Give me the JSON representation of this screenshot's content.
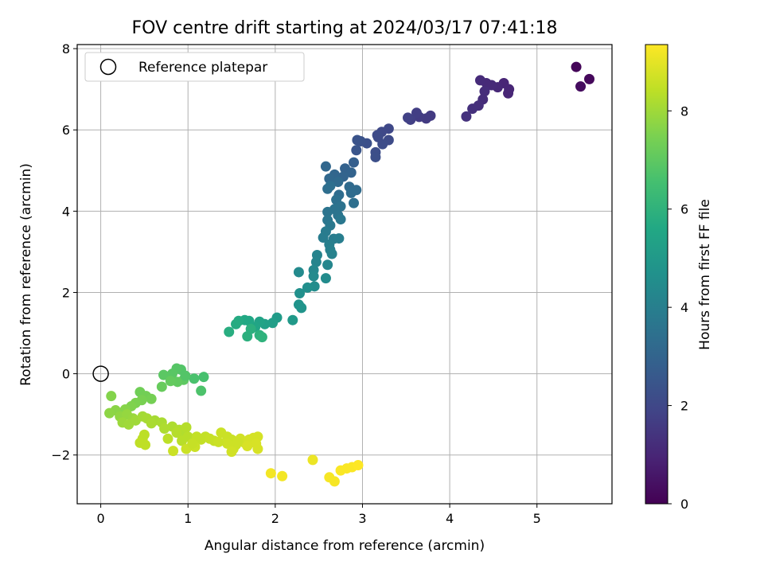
{
  "chart_data": {
    "type": "scatter",
    "title": "FOV centre drift starting at 2024/03/17 07:41:18",
    "xlabel": "Angular distance from reference (arcmin)",
    "ylabel": "Rotation from reference (arcmin)",
    "xlim": [
      -0.27,
      5.86
    ],
    "ylim": [
      -3.2,
      8.1
    ],
    "xticks": [
      0,
      1,
      2,
      3,
      4,
      5
    ],
    "yticks": [
      -2,
      0,
      2,
      4,
      6,
      8
    ],
    "grid": true,
    "colormap": "viridis",
    "colorbar": {
      "label": "Hours from first FF file",
      "range": [
        0,
        9.35
      ],
      "ticks": [
        0,
        2,
        4,
        6,
        8
      ]
    },
    "legend": {
      "position": "top-left",
      "entries": [
        {
          "label": "Reference platepar",
          "marker": "open-circle"
        }
      ]
    },
    "reference_point": {
      "x": 0,
      "y": 0
    },
    "points": [
      {
        "x": 5.45,
        "y": 7.55,
        "c": 0.1
      },
      {
        "x": 5.6,
        "y": 7.25,
        "c": 0.2
      },
      {
        "x": 5.5,
        "y": 7.07,
        "c": 0.3
      },
      {
        "x": 4.67,
        "y": 6.9,
        "c": 1.0
      },
      {
        "x": 4.62,
        "y": 7.15,
        "c": 1.0
      },
      {
        "x": 4.55,
        "y": 7.05,
        "c": 1.05
      },
      {
        "x": 4.48,
        "y": 7.1,
        "c": 1.1
      },
      {
        "x": 4.42,
        "y": 7.15,
        "c": 1.1
      },
      {
        "x": 4.35,
        "y": 7.22,
        "c": 1.15
      },
      {
        "x": 4.4,
        "y": 6.95,
        "c": 1.2
      },
      {
        "x": 4.38,
        "y": 6.75,
        "c": 1.2
      },
      {
        "x": 4.33,
        "y": 6.6,
        "c": 1.25
      },
      {
        "x": 4.26,
        "y": 6.52,
        "c": 1.3
      },
      {
        "x": 4.19,
        "y": 6.33,
        "c": 1.35
      },
      {
        "x": 4.68,
        "y": 7.0,
        "c": 1.0
      },
      {
        "x": 3.78,
        "y": 6.35,
        "c": 1.6
      },
      {
        "x": 3.73,
        "y": 6.28,
        "c": 1.6
      },
      {
        "x": 3.65,
        "y": 6.32,
        "c": 1.65
      },
      {
        "x": 3.62,
        "y": 6.42,
        "c": 1.7
      },
      {
        "x": 3.55,
        "y": 6.25,
        "c": 1.75
      },
      {
        "x": 3.52,
        "y": 6.3,
        "c": 1.8
      },
      {
        "x": 3.3,
        "y": 6.03,
        "c": 2.0
      },
      {
        "x": 3.22,
        "y": 5.95,
        "c": 2.05
      },
      {
        "x": 3.17,
        "y": 5.87,
        "c": 2.1
      },
      {
        "x": 3.3,
        "y": 5.75,
        "c": 2.1
      },
      {
        "x": 3.23,
        "y": 5.65,
        "c": 2.15
      },
      {
        "x": 3.15,
        "y": 5.45,
        "c": 2.2
      },
      {
        "x": 3.15,
        "y": 5.33,
        "c": 2.25
      },
      {
        "x": 3.05,
        "y": 5.67,
        "c": 2.3
      },
      {
        "x": 2.98,
        "y": 5.72,
        "c": 2.35
      },
      {
        "x": 2.94,
        "y": 5.75,
        "c": 2.4
      },
      {
        "x": 2.93,
        "y": 5.5,
        "c": 2.45
      },
      {
        "x": 3.18,
        "y": 5.82,
        "c": 2.1
      },
      {
        "x": 2.9,
        "y": 5.2,
        "c": 2.8
      },
      {
        "x": 2.8,
        "y": 5.05,
        "c": 2.9
      },
      {
        "x": 2.87,
        "y": 4.95,
        "c": 2.95
      },
      {
        "x": 2.78,
        "y": 4.85,
        "c": 3.0
      },
      {
        "x": 2.68,
        "y": 4.9,
        "c": 3.05
      },
      {
        "x": 2.58,
        "y": 5.1,
        "c": 3.1
      },
      {
        "x": 2.62,
        "y": 4.8,
        "c": 3.15
      },
      {
        "x": 2.72,
        "y": 4.72,
        "c": 3.2
      },
      {
        "x": 2.85,
        "y": 4.6,
        "c": 3.2
      },
      {
        "x": 2.93,
        "y": 4.52,
        "c": 3.25
      },
      {
        "x": 2.87,
        "y": 4.45,
        "c": 3.3
      },
      {
        "x": 2.73,
        "y": 4.4,
        "c": 3.3
      },
      {
        "x": 2.6,
        "y": 4.55,
        "c": 3.35
      },
      {
        "x": 2.63,
        "y": 4.62,
        "c": 3.4
      },
      {
        "x": 2.7,
        "y": 4.28,
        "c": 3.45
      },
      {
        "x": 2.75,
        "y": 4.12,
        "c": 3.5
      },
      {
        "x": 2.68,
        "y": 4.05,
        "c": 3.55
      },
      {
        "x": 2.6,
        "y": 3.98,
        "c": 3.6
      },
      {
        "x": 2.72,
        "y": 3.9,
        "c": 3.6
      },
      {
        "x": 2.6,
        "y": 3.78,
        "c": 3.65
      },
      {
        "x": 2.75,
        "y": 3.8,
        "c": 3.7
      },
      {
        "x": 2.9,
        "y": 4.2,
        "c": 3.4
      },
      {
        "x": 2.63,
        "y": 3.65,
        "c": 3.75
      },
      {
        "x": 2.58,
        "y": 3.5,
        "c": 3.85
      },
      {
        "x": 2.55,
        "y": 3.35,
        "c": 3.9
      },
      {
        "x": 2.67,
        "y": 3.32,
        "c": 3.9
      },
      {
        "x": 2.73,
        "y": 3.33,
        "c": 3.95
      },
      {
        "x": 2.62,
        "y": 3.18,
        "c": 4.0
      },
      {
        "x": 2.63,
        "y": 3.05,
        "c": 4.05
      },
      {
        "x": 2.65,
        "y": 2.95,
        "c": 4.1
      },
      {
        "x": 2.48,
        "y": 2.92,
        "c": 4.15
      },
      {
        "x": 2.47,
        "y": 2.75,
        "c": 4.2
      },
      {
        "x": 2.6,
        "y": 2.68,
        "c": 4.25
      },
      {
        "x": 2.44,
        "y": 2.55,
        "c": 4.3
      },
      {
        "x": 2.44,
        "y": 2.4,
        "c": 4.4
      },
      {
        "x": 2.27,
        "y": 2.5,
        "c": 4.4
      },
      {
        "x": 2.58,
        "y": 2.35,
        "c": 4.45
      },
      {
        "x": 2.45,
        "y": 2.15,
        "c": 4.5
      },
      {
        "x": 2.37,
        "y": 2.12,
        "c": 4.6
      },
      {
        "x": 2.28,
        "y": 1.98,
        "c": 4.65
      },
      {
        "x": 2.27,
        "y": 1.7,
        "c": 4.75
      },
      {
        "x": 2.3,
        "y": 1.62,
        "c": 4.8
      },
      {
        "x": 2.2,
        "y": 1.32,
        "c": 5.0
      },
      {
        "x": 2.02,
        "y": 1.38,
        "c": 5.1
      },
      {
        "x": 1.97,
        "y": 1.25,
        "c": 5.2
      },
      {
        "x": 1.88,
        "y": 1.22,
        "c": 5.3
      },
      {
        "x": 1.82,
        "y": 1.28,
        "c": 5.4
      },
      {
        "x": 1.77,
        "y": 1.15,
        "c": 5.5
      },
      {
        "x": 1.7,
        "y": 1.3,
        "c": 5.55
      },
      {
        "x": 1.65,
        "y": 1.32,
        "c": 5.6
      },
      {
        "x": 1.58,
        "y": 1.3,
        "c": 5.7
      },
      {
        "x": 1.55,
        "y": 1.22,
        "c": 5.75
      },
      {
        "x": 1.47,
        "y": 1.03,
        "c": 5.8
      },
      {
        "x": 1.68,
        "y": 0.92,
        "c": 5.9
      },
      {
        "x": 1.82,
        "y": 0.95,
        "c": 5.95
      },
      {
        "x": 1.85,
        "y": 0.9,
        "c": 6.0
      },
      {
        "x": 1.72,
        "y": 1.1,
        "c": 5.9
      },
      {
        "x": 1.18,
        "y": -0.08,
        "c": 6.6
      },
      {
        "x": 1.07,
        "y": -0.12,
        "c": 6.65
      },
      {
        "x": 1.15,
        "y": -0.42,
        "c": 6.7
      },
      {
        "x": 0.92,
        "y": 0.1,
        "c": 6.8
      },
      {
        "x": 0.87,
        "y": 0.13,
        "c": 6.85
      },
      {
        "x": 0.82,
        "y": 0.0,
        "c": 6.9
      },
      {
        "x": 0.72,
        "y": -0.03,
        "c": 6.95
      },
      {
        "x": 0.95,
        "y": -0.15,
        "c": 7.0
      },
      {
        "x": 0.88,
        "y": -0.2,
        "c": 7.05
      },
      {
        "x": 0.8,
        "y": -0.18,
        "c": 7.1
      },
      {
        "x": 0.7,
        "y": -0.32,
        "c": 7.15
      },
      {
        "x": 0.97,
        "y": -0.05,
        "c": 6.8
      },
      {
        "x": 0.45,
        "y": -0.45,
        "c": 7.3
      },
      {
        "x": 0.52,
        "y": -0.55,
        "c": 7.35
      },
      {
        "x": 0.58,
        "y": -0.62,
        "c": 7.4
      },
      {
        "x": 0.47,
        "y": -0.65,
        "c": 7.45
      },
      {
        "x": 0.4,
        "y": -0.72,
        "c": 7.5
      },
      {
        "x": 0.35,
        "y": -0.8,
        "c": 7.55
      },
      {
        "x": 0.12,
        "y": -0.55,
        "c": 7.6
      },
      {
        "x": 0.28,
        "y": -0.88,
        "c": 7.65
      },
      {
        "x": 0.17,
        "y": -0.9,
        "c": 7.7
      },
      {
        "x": 0.1,
        "y": -0.97,
        "c": 7.75
      },
      {
        "x": 0.22,
        "y": -1.05,
        "c": 7.8
      },
      {
        "x": 0.3,
        "y": -1.0,
        "c": 7.85
      },
      {
        "x": 0.37,
        "y": -1.1,
        "c": 7.9
      },
      {
        "x": 0.25,
        "y": -1.2,
        "c": 7.95
      },
      {
        "x": 0.32,
        "y": -1.25,
        "c": 8.0
      },
      {
        "x": 0.4,
        "y": -1.15,
        "c": 8.0
      },
      {
        "x": 0.48,
        "y": -1.05,
        "c": 8.05
      },
      {
        "x": 0.53,
        "y": -1.1,
        "c": 8.1
      },
      {
        "x": 0.62,
        "y": -1.15,
        "c": 8.1
      },
      {
        "x": 0.58,
        "y": -1.22,
        "c": 8.15
      },
      {
        "x": 0.7,
        "y": -1.2,
        "c": 8.15
      },
      {
        "x": 0.73,
        "y": -1.35,
        "c": 8.2
      },
      {
        "x": 0.82,
        "y": -1.3,
        "c": 8.2
      },
      {
        "x": 0.9,
        "y": -1.38,
        "c": 8.25
      },
      {
        "x": 0.95,
        "y": -1.45,
        "c": 8.25
      },
      {
        "x": 0.87,
        "y": -1.45,
        "c": 8.3
      },
      {
        "x": 0.98,
        "y": -1.32,
        "c": 8.3
      },
      {
        "x": 1.0,
        "y": -1.55,
        "c": 8.35
      },
      {
        "x": 0.93,
        "y": -1.65,
        "c": 8.35
      },
      {
        "x": 0.77,
        "y": -1.6,
        "c": 8.4
      },
      {
        "x": 0.5,
        "y": -1.5,
        "c": 8.4
      },
      {
        "x": 0.48,
        "y": -1.6,
        "c": 8.4
      },
      {
        "x": 0.45,
        "y": -1.7,
        "c": 8.45
      },
      {
        "x": 0.51,
        "y": -1.75,
        "c": 8.45
      },
      {
        "x": 1.1,
        "y": -1.55,
        "c": 8.5
      },
      {
        "x": 1.15,
        "y": -1.62,
        "c": 8.5
      },
      {
        "x": 1.2,
        "y": -1.55,
        "c": 8.5
      },
      {
        "x": 1.25,
        "y": -1.6,
        "c": 8.55
      },
      {
        "x": 1.3,
        "y": -1.65,
        "c": 8.55
      },
      {
        "x": 1.38,
        "y": -1.45,
        "c": 8.6
      },
      {
        "x": 1.45,
        "y": -1.55,
        "c": 8.6
      },
      {
        "x": 1.5,
        "y": -1.62,
        "c": 8.6
      },
      {
        "x": 1.45,
        "y": -1.72,
        "c": 8.65
      },
      {
        "x": 1.55,
        "y": -1.75,
        "c": 8.65
      },
      {
        "x": 1.52,
        "y": -1.85,
        "c": 8.65
      },
      {
        "x": 1.5,
        "y": -1.92,
        "c": 8.7
      },
      {
        "x": 1.6,
        "y": -1.6,
        "c": 8.7
      },
      {
        "x": 1.65,
        "y": -1.7,
        "c": 8.7
      },
      {
        "x": 1.7,
        "y": -1.62,
        "c": 8.75
      },
      {
        "x": 1.75,
        "y": -1.58,
        "c": 8.75
      },
      {
        "x": 1.8,
        "y": -1.55,
        "c": 8.75
      },
      {
        "x": 1.78,
        "y": -1.72,
        "c": 8.8
      },
      {
        "x": 1.8,
        "y": -1.85,
        "c": 8.8
      },
      {
        "x": 1.68,
        "y": -1.78,
        "c": 8.8
      },
      {
        "x": 1.08,
        "y": -1.8,
        "c": 8.6
      },
      {
        "x": 0.98,
        "y": -1.85,
        "c": 8.6
      },
      {
        "x": 0.83,
        "y": -1.9,
        "c": 8.6
      },
      {
        "x": 1.57,
        "y": -1.68,
        "c": 8.65
      },
      {
        "x": 1.35,
        "y": -1.68,
        "c": 8.6
      },
      {
        "x": 1.05,
        "y": -1.72,
        "c": 8.55
      },
      {
        "x": 2.43,
        "y": -2.12,
        "c": 9.1
      },
      {
        "x": 1.95,
        "y": -2.45,
        "c": 9.2
      },
      {
        "x": 2.08,
        "y": -2.52,
        "c": 9.2
      },
      {
        "x": 2.62,
        "y": -2.55,
        "c": 9.25
      },
      {
        "x": 2.68,
        "y": -2.65,
        "c": 9.25
      },
      {
        "x": 2.75,
        "y": -2.38,
        "c": 9.3
      },
      {
        "x": 2.82,
        "y": -2.33,
        "c": 9.3
      },
      {
        "x": 2.88,
        "y": -2.3,
        "c": 9.3
      },
      {
        "x": 2.95,
        "y": -2.25,
        "c": 9.35
      }
    ]
  }
}
